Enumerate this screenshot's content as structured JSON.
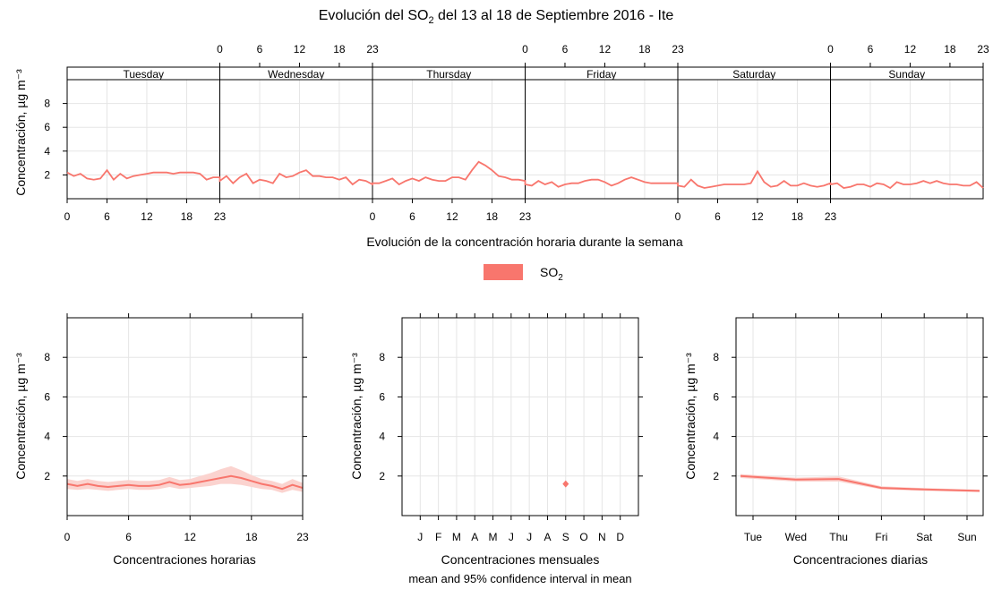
{
  "title": {
    "prefix": "Evolución del SO",
    "subscript": "2",
    "suffix": " del 13 al 18 de Septiembre 2016 - Ite"
  },
  "legend": {
    "label": "SO",
    "subscript": "2",
    "color": "#f8766d"
  },
  "colors": {
    "series": "#f8766d",
    "band": "#fbd3cf",
    "grid": "#e5e5e5"
  },
  "chart_data": [
    {
      "type": "line",
      "panel": "weekly",
      "xlabel": "Evolución de la concentración horaria durante la semana",
      "ylabel": "Concentración, µg m⁻³",
      "ylim": [
        0,
        10
      ],
      "y_ticks": [
        2,
        4,
        6,
        8
      ],
      "x_ticks": [
        "0",
        "6",
        "12",
        "18",
        "23"
      ],
      "day_labels": [
        "Tuesday",
        "Wednesday",
        "Thursday",
        "Friday",
        "Saturday",
        "Sunday"
      ],
      "grid": true,
      "series": [
        {
          "values": [
            [
              2.2,
              1.9,
              2.1,
              1.7,
              1.6,
              1.7,
              2.4,
              1.6,
              2.1,
              1.7,
              1.9,
              2.0,
              2.1,
              2.2,
              2.2,
              2.2,
              2.1,
              2.2,
              2.2,
              2.2,
              2.1,
              1.6,
              1.8,
              1.8
            ],
            [
              1.5,
              1.9,
              1.3,
              1.8,
              2.1,
              1.3,
              1.6,
              1.5,
              1.3,
              2.1,
              1.8,
              1.9,
              2.2,
              2.4,
              1.9,
              1.9,
              1.8,
              1.8,
              1.6,
              1.8,
              1.2,
              1.6,
              1.5,
              1.2
            ],
            [
              1.3,
              1.3,
              1.5,
              1.7,
              1.2,
              1.5,
              1.7,
              1.5,
              1.8,
              1.6,
              1.5,
              1.5,
              1.8,
              1.8,
              1.6,
              2.4,
              3.1,
              2.8,
              2.4,
              1.9,
              1.8,
              1.6,
              1.6,
              1.5
            ],
            [
              1.2,
              1.1,
              1.5,
              1.2,
              1.4,
              1.0,
              1.2,
              1.3,
              1.3,
              1.5,
              1.6,
              1.6,
              1.4,
              1.1,
              1.3,
              1.6,
              1.8,
              1.6,
              1.4,
              1.3,
              1.3,
              1.3,
              1.3,
              1.3
            ],
            [
              1.1,
              1.0,
              1.6,
              1.1,
              0.9,
              1.0,
              1.1,
              1.2,
              1.2,
              1.2,
              1.2,
              1.3,
              2.3,
              1.4,
              1.0,
              1.1,
              1.5,
              1.1,
              1.1,
              1.3,
              1.1,
              1.0,
              1.1,
              1.3
            ],
            [
              1.2,
              1.3,
              0.9,
              1.0,
              1.2,
              1.2,
              1.0,
              1.3,
              1.2,
              0.9,
              1.4,
              1.2,
              1.2,
              1.3,
              1.5,
              1.3,
              1.5,
              1.3,
              1.2,
              1.2,
              1.1,
              1.1,
              1.4,
              0.9
            ]
          ]
        }
      ]
    },
    {
      "type": "line",
      "panel": "hourly",
      "xlabel": "Concentraciones horarias",
      "ylabel": "Concentración, µg m⁻³",
      "ylim": [
        0,
        10
      ],
      "xlim": [
        0,
        23
      ],
      "y_ticks": [
        2,
        4,
        6,
        8
      ],
      "x_ticks": [
        0,
        6,
        12,
        18,
        23
      ],
      "grid": true,
      "x": [
        0,
        1,
        2,
        3,
        4,
        5,
        6,
        7,
        8,
        9,
        10,
        11,
        12,
        13,
        14,
        15,
        16,
        17,
        18,
        19,
        20,
        21,
        22,
        23
      ],
      "values": [
        1.6,
        1.5,
        1.6,
        1.5,
        1.45,
        1.5,
        1.55,
        1.5,
        1.5,
        1.55,
        1.7,
        1.55,
        1.6,
        1.7,
        1.8,
        1.9,
        2.0,
        1.9,
        1.75,
        1.6,
        1.5,
        1.35,
        1.55,
        1.4
      ],
      "lower": [
        1.35,
        1.3,
        1.35,
        1.3,
        1.25,
        1.3,
        1.35,
        1.3,
        1.3,
        1.35,
        1.45,
        1.35,
        1.4,
        1.45,
        1.5,
        1.6,
        1.6,
        1.55,
        1.45,
        1.35,
        1.3,
        1.15,
        1.3,
        1.2
      ],
      "upper": [
        1.85,
        1.75,
        1.85,
        1.75,
        1.7,
        1.75,
        1.8,
        1.75,
        1.75,
        1.8,
        1.95,
        1.8,
        1.85,
        2.0,
        2.15,
        2.35,
        2.5,
        2.3,
        2.05,
        1.85,
        1.75,
        1.6,
        1.85,
        1.65
      ]
    },
    {
      "type": "scatter",
      "panel": "monthly",
      "xlabel": "Concentraciones mensuales",
      "subtitle": "mean and 95% confidence interval in mean",
      "ylabel": "Concentración, µg m⁻³",
      "ylim": [
        0,
        10
      ],
      "y_ticks": [
        2,
        4,
        6,
        8
      ],
      "categories": [
        "J",
        "F",
        "M",
        "A",
        "M",
        "J",
        "J",
        "A",
        "S",
        "O",
        "N",
        "D"
      ],
      "grid": true,
      "points": [
        {
          "category": "S",
          "value": 1.6,
          "lower": 1.5,
          "upper": 1.7
        }
      ]
    },
    {
      "type": "line",
      "panel": "daily",
      "xlabel": "Concentraciones diarias",
      "ylabel": "Concentración, µg m⁻³",
      "ylim": [
        0,
        10
      ],
      "y_ticks": [
        2,
        4,
        6,
        8
      ],
      "categories": [
        "Tue",
        "Wed",
        "Thu",
        "Fri",
        "Sat",
        "Sun"
      ],
      "grid": true,
      "values": [
        2.0,
        1.82,
        1.85,
        1.4,
        1.32,
        1.25
      ],
      "lower": [
        1.9,
        1.72,
        1.72,
        1.32,
        1.25,
        1.19
      ],
      "upper": [
        2.1,
        1.92,
        1.98,
        1.48,
        1.39,
        1.31
      ]
    }
  ]
}
